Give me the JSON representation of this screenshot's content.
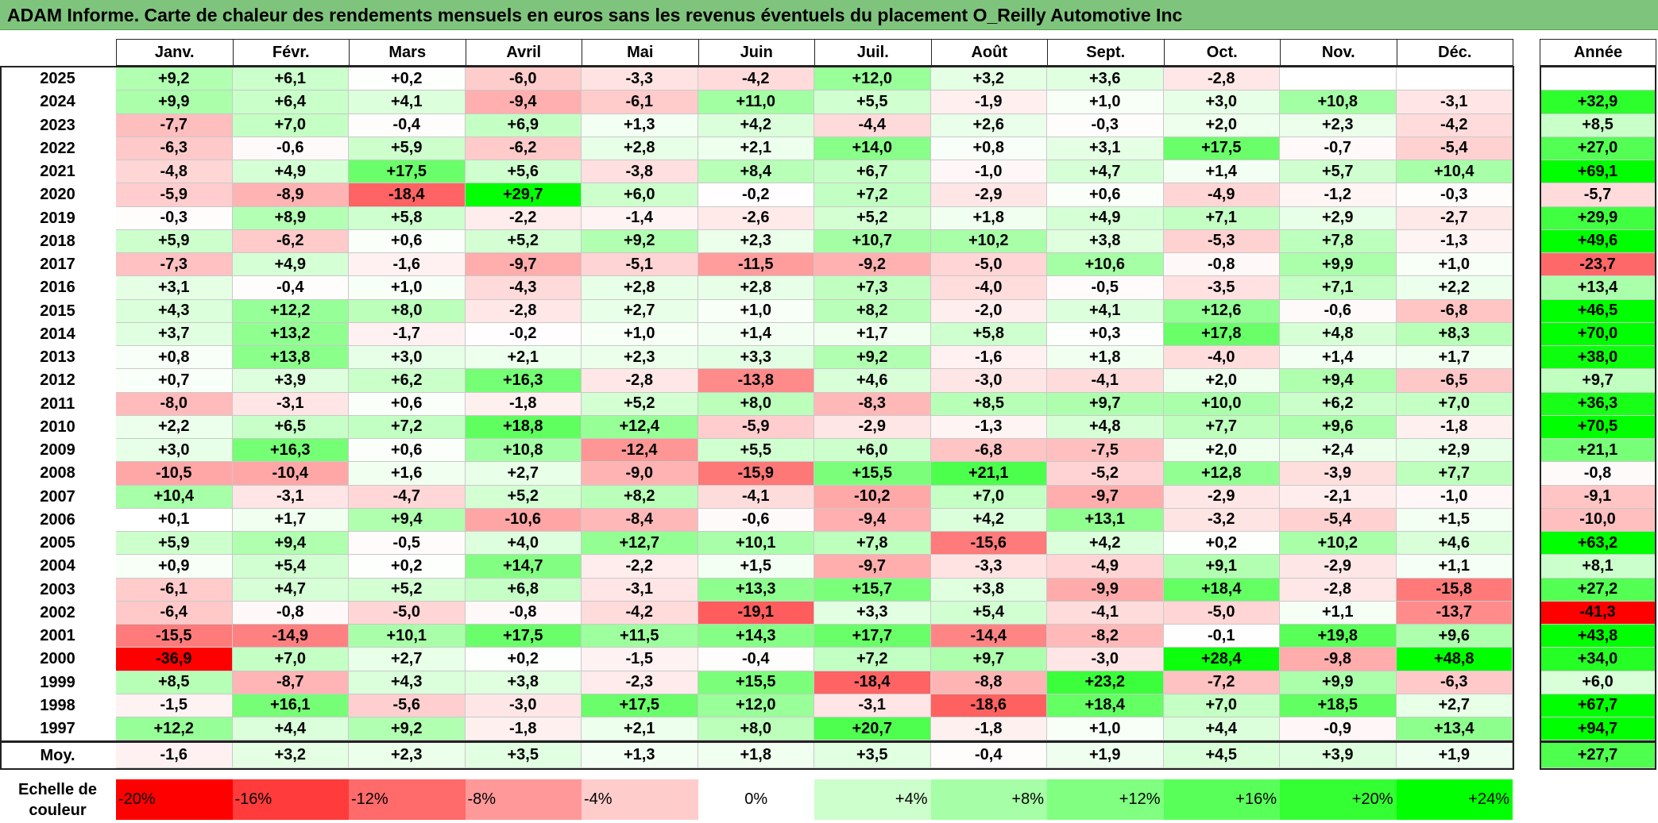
{
  "title": "ADAM Informe. Carte de chaleur des rendements mensuels en euros sans les revenus éventuels du placement O_Reilly Automotive Inc",
  "chart_data": {
    "type": "heatmap",
    "title": "ADAM Informe. Carte de chaleur des rendements mensuels en euros sans les revenus éventuels du placement O_Reilly Automotive Inc",
    "columns": [
      "Janv.",
      "Févr.",
      "Mars",
      "Avril",
      "Mai",
      "Juin",
      "Juil.",
      "Août",
      "Sept.",
      "Oct.",
      "Nov.",
      "Déc."
    ],
    "year_column_label": "Année",
    "rows": [
      {
        "year": "2025",
        "values": [
          "+9,2",
          "+6,1",
          "+0,2",
          "-6,0",
          "-3,3",
          "-4,2",
          "+12,0",
          "+3,2",
          "+3,6",
          "-2,8",
          "",
          ""
        ],
        "annual": ""
      },
      {
        "year": "2024",
        "values": [
          "+9,9",
          "+6,4",
          "+4,1",
          "-9,4",
          "-6,1",
          "+11,0",
          "+5,5",
          "-1,9",
          "+1,0",
          "+3,0",
          "+10,8",
          "-3,1"
        ],
        "annual": "+32,9"
      },
      {
        "year": "2023",
        "values": [
          "-7,7",
          "+7,0",
          "-0,4",
          "+6,9",
          "+1,3",
          "+4,2",
          "-4,4",
          "+2,6",
          "-0,3",
          "+2,0",
          "+2,3",
          "-4,2"
        ],
        "annual": "+8,5"
      },
      {
        "year": "2022",
        "values": [
          "-6,3",
          "-0,6",
          "+5,9",
          "-6,2",
          "+2,8",
          "+2,1",
          "+14,0",
          "+0,8",
          "+3,1",
          "+17,5",
          "-0,7",
          "-5,4"
        ],
        "annual": "+27,0"
      },
      {
        "year": "2021",
        "values": [
          "-4,8",
          "+4,9",
          "+17,5",
          "+5,6",
          "-3,8",
          "+8,4",
          "+6,7",
          "-1,0",
          "+4,7",
          "+1,4",
          "+5,7",
          "+10,4"
        ],
        "annual": "+69,1"
      },
      {
        "year": "2020",
        "values": [
          "-5,9",
          "-8,9",
          "-18,4",
          "+29,7",
          "+6,0",
          "-0,2",
          "+7,2",
          "-2,9",
          "+0,6",
          "-4,9",
          "-1,2",
          "-0,3"
        ],
        "annual": "-5,7"
      },
      {
        "year": "2019",
        "values": [
          "-0,3",
          "+8,9",
          "+5,8",
          "-2,2",
          "-1,4",
          "-2,6",
          "+5,2",
          "+1,8",
          "+4,9",
          "+7,1",
          "+2,9",
          "-2,7"
        ],
        "annual": "+29,9"
      },
      {
        "year": "2018",
        "values": [
          "+5,9",
          "-6,2",
          "+0,6",
          "+5,2",
          "+9,2",
          "+2,3",
          "+10,7",
          "+10,2",
          "+3,8",
          "-5,3",
          "+7,8",
          "-1,3"
        ],
        "annual": "+49,6"
      },
      {
        "year": "2017",
        "values": [
          "-7,3",
          "+4,9",
          "-1,6",
          "-9,7",
          "-5,1",
          "-11,5",
          "-9,2",
          "-5,0",
          "+10,6",
          "-0,8",
          "+9,9",
          "+1,0"
        ],
        "annual": "-23,7"
      },
      {
        "year": "2016",
        "values": [
          "+3,1",
          "-0,4",
          "+1,0",
          "-4,3",
          "+2,8",
          "+2,8",
          "+7,3",
          "-4,0",
          "-0,5",
          "-3,5",
          "+7,1",
          "+2,2"
        ],
        "annual": "+13,4"
      },
      {
        "year": "2015",
        "values": [
          "+4,3",
          "+12,2",
          "+8,0",
          "-2,8",
          "+2,7",
          "+1,0",
          "+8,2",
          "-2,0",
          "+4,1",
          "+12,6",
          "-0,6",
          "-6,8"
        ],
        "annual": "+46,5"
      },
      {
        "year": "2014",
        "values": [
          "+3,7",
          "+13,2",
          "-1,7",
          "-0,2",
          "+1,0",
          "+1,4",
          "+1,7",
          "+5,8",
          "+0,3",
          "+17,8",
          "+4,8",
          "+8,3"
        ],
        "annual": "+70,0"
      },
      {
        "year": "2013",
        "values": [
          "+0,8",
          "+13,8",
          "+3,0",
          "+2,1",
          "+2,3",
          "+3,3",
          "+9,2",
          "-1,6",
          "+1,8",
          "-4,0",
          "+1,4",
          "+1,7"
        ],
        "annual": "+38,0"
      },
      {
        "year": "2012",
        "values": [
          "+0,7",
          "+3,9",
          "+6,2",
          "+16,3",
          "-2,8",
          "-13,8",
          "+4,6",
          "-3,0",
          "-4,1",
          "+2,0",
          "+9,4",
          "-6,5"
        ],
        "annual": "+9,7"
      },
      {
        "year": "2011",
        "values": [
          "-8,0",
          "-3,1",
          "+0,6",
          "-1,8",
          "+5,2",
          "+8,0",
          "-8,3",
          "+8,5",
          "+9,7",
          "+10,0",
          "+6,2",
          "+7,0"
        ],
        "annual": "+36,3"
      },
      {
        "year": "2010",
        "values": [
          "+2,2",
          "+6,5",
          "+7,2",
          "+18,8",
          "+12,4",
          "-5,9",
          "-2,9",
          "-1,3",
          "+4,8",
          "+7,7",
          "+9,6",
          "-1,8"
        ],
        "annual": "+70,5"
      },
      {
        "year": "2009",
        "values": [
          "+3,0",
          "+16,3",
          "+0,6",
          "+10,8",
          "-12,4",
          "+5,5",
          "+6,0",
          "-6,8",
          "-7,5",
          "+2,0",
          "+2,4",
          "+2,9"
        ],
        "annual": "+21,1"
      },
      {
        "year": "2008",
        "values": [
          "-10,5",
          "-10,4",
          "+1,6",
          "+2,7",
          "-9,0",
          "-15,9",
          "+15,5",
          "+21,1",
          "-5,2",
          "+12,8",
          "-3,9",
          "+7,7"
        ],
        "annual": "-0,8"
      },
      {
        "year": "2007",
        "values": [
          "+10,4",
          "-3,1",
          "-4,7",
          "+5,2",
          "+8,2",
          "-4,1",
          "-10,2",
          "+7,0",
          "-9,7",
          "-2,9",
          "-2,1",
          "-1,0"
        ],
        "annual": "-9,1"
      },
      {
        "year": "2006",
        "values": [
          "+0,1",
          "+1,7",
          "+9,4",
          "-10,6",
          "-8,4",
          "-0,6",
          "-9,4",
          "+4,2",
          "+13,1",
          "-3,2",
          "-5,4",
          "+1,5"
        ],
        "annual": "-10,0"
      },
      {
        "year": "2005",
        "values": [
          "+5,9",
          "+9,4",
          "-0,5",
          "+4,0",
          "+12,7",
          "+10,1",
          "+7,8",
          "-15,6",
          "+4,2",
          "+0,2",
          "+10,2",
          "+4,6"
        ],
        "annual": "+63,2"
      },
      {
        "year": "2004",
        "values": [
          "+0,9",
          "+5,4",
          "+0,2",
          "+14,7",
          "-2,2",
          "+1,5",
          "-9,7",
          "-3,3",
          "-4,9",
          "+9,1",
          "-2,9",
          "+1,1"
        ],
        "annual": "+8,1"
      },
      {
        "year": "2003",
        "values": [
          "-6,1",
          "+4,7",
          "+5,2",
          "+6,8",
          "-3,1",
          "+13,3",
          "+15,7",
          "+3,8",
          "-9,9",
          "+18,4",
          "-2,8",
          "-15,8"
        ],
        "annual": "+27,2"
      },
      {
        "year": "2002",
        "values": [
          "-6,4",
          "-0,8",
          "-5,0",
          "-0,8",
          "-4,2",
          "-19,1",
          "+3,3",
          "+5,4",
          "-4,1",
          "-5,0",
          "+1,1",
          "-13,7"
        ],
        "annual": "-41,3"
      },
      {
        "year": "2001",
        "values": [
          "-15,5",
          "-14,9",
          "+10,1",
          "+17,5",
          "+11,5",
          "+14,3",
          "+17,7",
          "-14,4",
          "-8,2",
          "-0,1",
          "+19,8",
          "+9,6"
        ],
        "annual": "+43,8"
      },
      {
        "year": "2000",
        "values": [
          "-36,9",
          "+7,0",
          "+2,7",
          "+0,2",
          "-1,5",
          "-0,4",
          "+7,2",
          "+9,7",
          "-3,0",
          "+28,4",
          "-9,8",
          "+48,8"
        ],
        "annual": "+34,0"
      },
      {
        "year": "1999",
        "values": [
          "+8,5",
          "-8,7",
          "+4,3",
          "+3,8",
          "-2,3",
          "+15,5",
          "-18,4",
          "-8,8",
          "+23,2",
          "-7,2",
          "+9,9",
          "-6,3"
        ],
        "annual": "+6,0"
      },
      {
        "year": "1998",
        "values": [
          "-1,5",
          "+16,1",
          "-5,6",
          "-3,0",
          "+17,5",
          "+12,0",
          "-3,1",
          "-18,6",
          "+18,4",
          "+7,0",
          "+18,5",
          "+2,7"
        ],
        "annual": "+67,7"
      },
      {
        "year": "1997",
        "values": [
          "+12,2",
          "+4,4",
          "+9,2",
          "-1,8",
          "+2,1",
          "+8,0",
          "+20,7",
          "-1,8",
          "+1,0",
          "+4,4",
          "-0,9",
          "+13,4"
        ],
        "annual": "+94,7"
      }
    ],
    "average_row": {
      "label": "Moy.",
      "values": [
        "-1,6",
        "+3,2",
        "+2,3",
        "+3,5",
        "+1,3",
        "+1,8",
        "+3,5",
        "-0,4",
        "+1,9",
        "+4,5",
        "+3,9",
        "+1,9"
      ],
      "annual": "+27,7"
    },
    "legend": {
      "label": "Echelle de couleur",
      "items": [
        "-20%",
        "-16%",
        "-12%",
        "-8%",
        "-4%",
        "0%",
        "+4%",
        "+8%",
        "+12%",
        "+16%",
        "+20%",
        "+24%"
      ],
      "colors": [
        "#ff0000",
        "#ff3b3b",
        "#ff6a6a",
        "#ff9999",
        "#ffcccc",
        "#ffffff",
        "#ccffcc",
        "#a6ffa6",
        "#80ff80",
        "#59ff59",
        "#33ff33",
        "#00ff00"
      ]
    }
  }
}
